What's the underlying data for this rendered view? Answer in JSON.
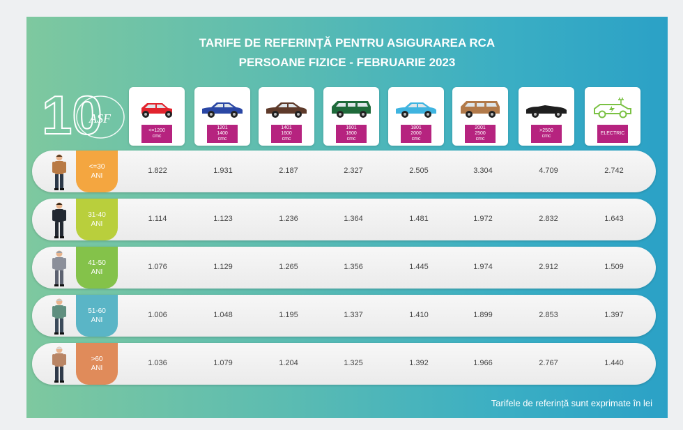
{
  "header": {
    "title_line1": "TARIFE DE REFERINȚĂ PENTRU ASIGURAREA RCA",
    "title_line2": "PERSOANE FIZICE - FEBRUARIE 2023"
  },
  "logo": {
    "numeral": "10",
    "text": "ASF"
  },
  "columns": [
    {
      "lines": [
        "<=1200",
        "cmc"
      ],
      "car_color": "#e2232d",
      "icon": "small-car-icon"
    },
    {
      "lines": [
        "1201",
        "1400",
        "cmc"
      ],
      "car_color": "#2a47a5",
      "icon": "hatchback-icon"
    },
    {
      "lines": [
        "1401",
        "1600",
        "cmc"
      ],
      "car_color": "#5e3a2a",
      "icon": "sedan-icon"
    },
    {
      "lines": [
        "1601",
        "1800",
        "cmc"
      ],
      "car_color": "#1e6a3a",
      "icon": "minivan-icon"
    },
    {
      "lines": [
        "1801",
        "2000",
        "cmc"
      ],
      "car_color": "#3fb4e0",
      "icon": "sedan-icon"
    },
    {
      "lines": [
        "2001",
        "2500",
        "cmc"
      ],
      "car_color": "#b27a4a",
      "icon": "suv-icon"
    },
    {
      "lines": [
        ">2500",
        "cmc"
      ],
      "car_color": "#1e1e1e",
      "icon": "convertible-icon"
    },
    {
      "lines": [
        "ELECTRIC"
      ],
      "car_color": "#7ac143",
      "icon": "electric-car-icon"
    }
  ],
  "rows": [
    {
      "age_lines": [
        "<=30",
        "ANI"
      ],
      "tab_color": "#f4a640",
      "values": [
        "1.822",
        "1.931",
        "2.187",
        "2.327",
        "2.505",
        "3.304",
        "4.709",
        "2.742"
      ]
    },
    {
      "age_lines": [
        "31-40",
        "ANI"
      ],
      "tab_color": "#b9cf3c",
      "values": [
        "1.114",
        "1.123",
        "1.236",
        "1.364",
        "1.481",
        "1.972",
        "2.832",
        "1.643"
      ]
    },
    {
      "age_lines": [
        "41-50",
        "ANI"
      ],
      "tab_color": "#84c24a",
      "values": [
        "1.076",
        "1.129",
        "1.265",
        "1.356",
        "1.445",
        "1.974",
        "2.912",
        "1.509"
      ]
    },
    {
      "age_lines": [
        "51-60",
        "ANI"
      ],
      "tab_color": "#5ab5c6",
      "values": [
        "1.006",
        "1.048",
        "1.195",
        "1.337",
        "1.410",
        "1.899",
        "2.853",
        "1.397"
      ]
    },
    {
      "age_lines": [
        ">60",
        "ANI"
      ],
      "tab_color": "#e08b5a",
      "values": [
        "1.036",
        "1.079",
        "1.204",
        "1.325",
        "1.392",
        "1.966",
        "2.767",
        "1.440"
      ]
    }
  ],
  "footnote": "Tarifele de referință sunt exprimate în lei",
  "colors": {
    "label_bg": "#b6237f",
    "panel_gradient_start": "#7ec89f",
    "panel_gradient_end": "#2ba1c6"
  }
}
